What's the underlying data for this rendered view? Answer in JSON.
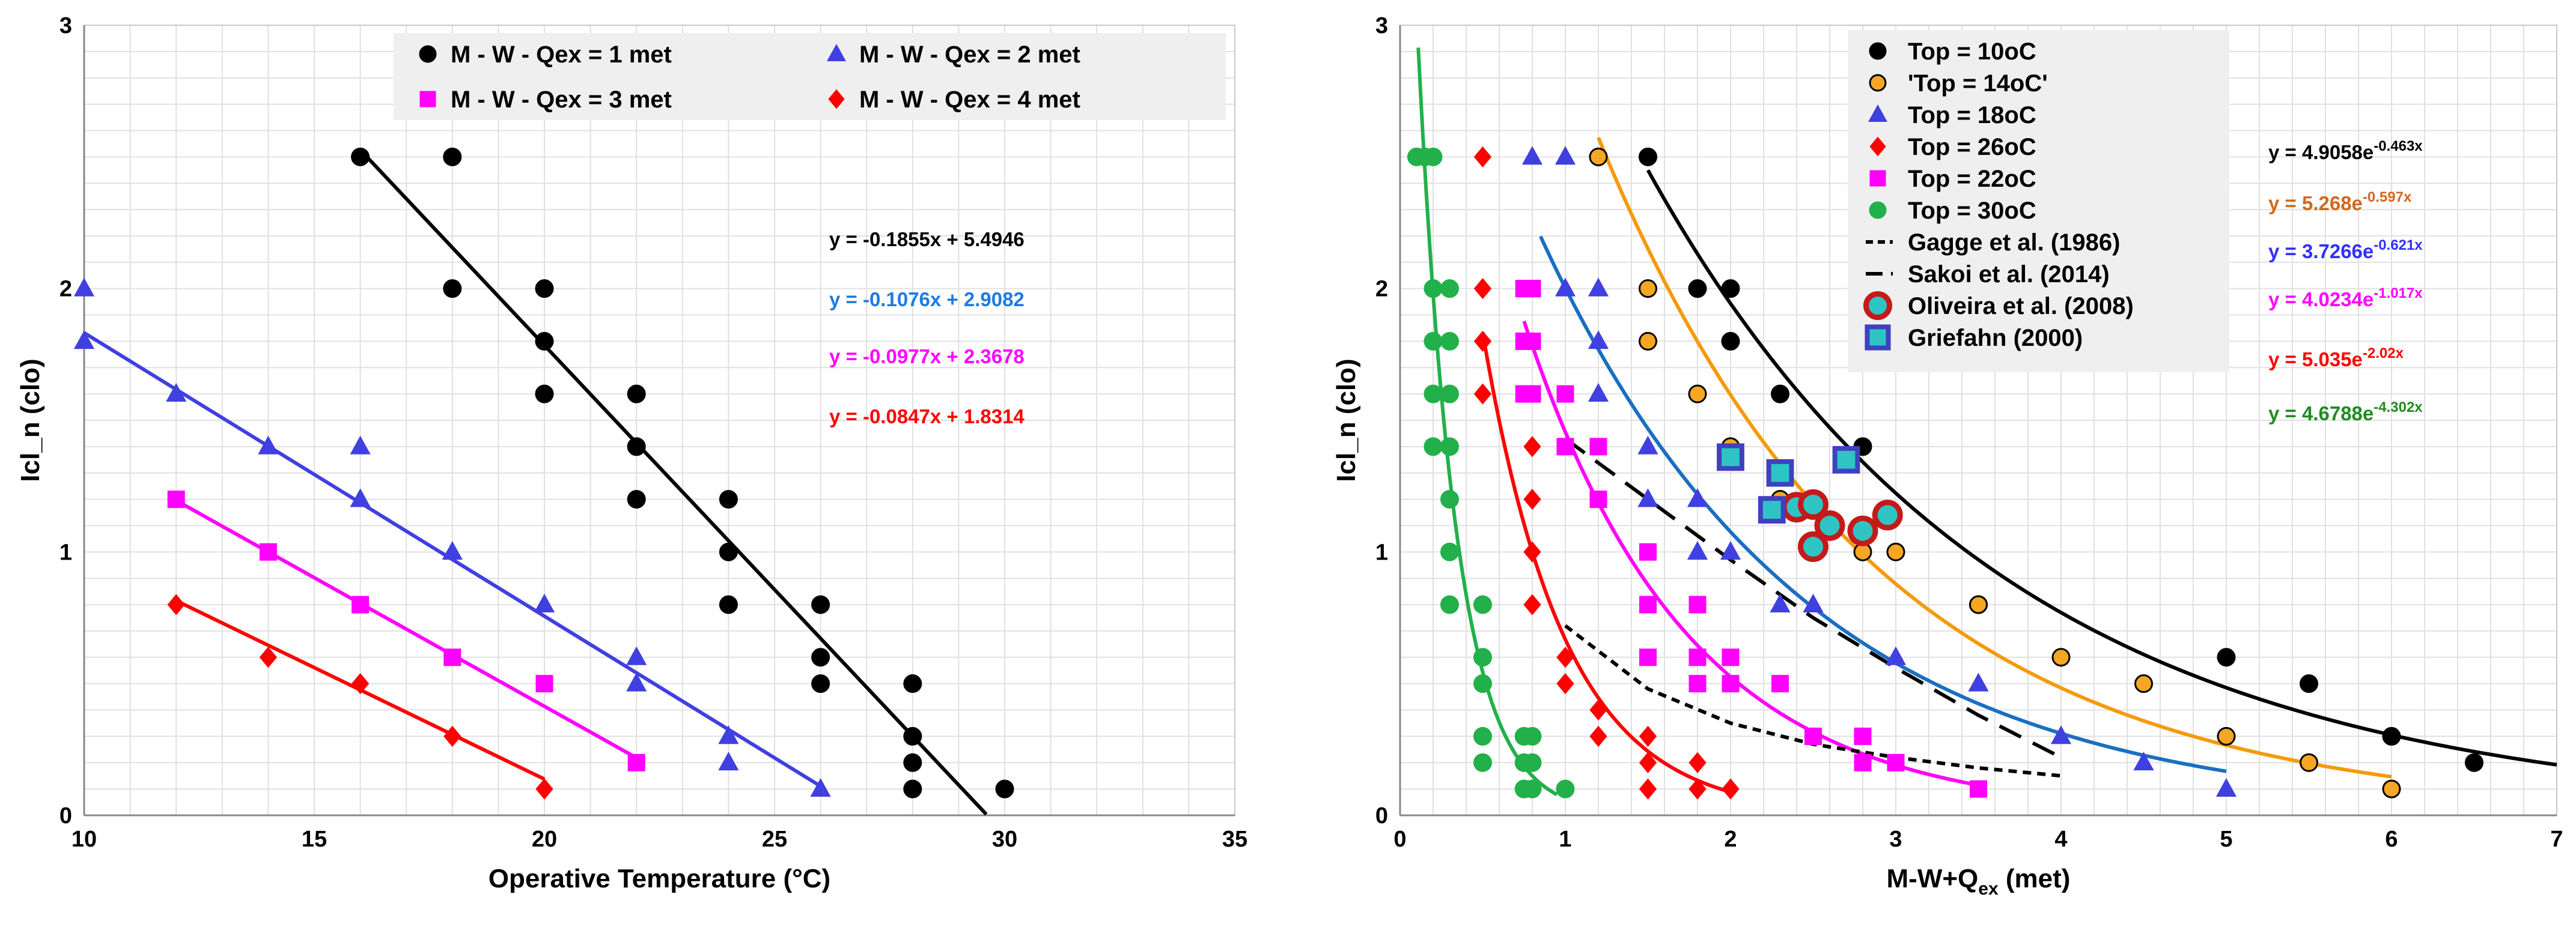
{
  "chart_data": [
    {
      "type": "scatter",
      "xlabel": "Operative Temperature (°C)",
      "ylabel": "Icl_n (clo)",
      "xlim": [
        10,
        35
      ],
      "ylim": [
        0,
        3
      ],
      "xticks": [
        10,
        15,
        20,
        25,
        30,
        35
      ],
      "yticks": [
        0,
        1,
        2,
        3
      ],
      "grid": true,
      "legend_position": "top",
      "series": [
        {
          "name": "M - W - Qex = 1 met",
          "marker": "circle",
          "color": "#000000",
          "points": [
            [
              16,
              2.5
            ],
            [
              18,
              2.5
            ],
            [
              18,
              2.0
            ],
            [
              20,
              2.0
            ],
            [
              20,
              1.8
            ],
            [
              20,
              1.6
            ],
            [
              22,
              1.6
            ],
            [
              22,
              1.4
            ],
            [
              22,
              1.2
            ],
            [
              24,
              1.2
            ],
            [
              24,
              1.0
            ],
            [
              24,
              0.8
            ],
            [
              26,
              0.8
            ],
            [
              26,
              0.6
            ],
            [
              26,
              0.5
            ],
            [
              28,
              0.5
            ],
            [
              28,
              0.3
            ],
            [
              28,
              0.2
            ],
            [
              28,
              0.1
            ],
            [
              30,
              0.1
            ]
          ],
          "fit": {
            "slope": -0.1855,
            "intercept": 5.4946,
            "x_range": [
              16,
              29.6
            ],
            "equation": "y = -0.1855x + 5.4946"
          }
        },
        {
          "name": "M - W - Qex = 2 met",
          "marker": "triangle",
          "color": "#4040e0",
          "points": [
            [
              10,
              2.0
            ],
            [
              10,
              1.8
            ],
            [
              12,
              1.6
            ],
            [
              14,
              1.4
            ],
            [
              16,
              1.4
            ],
            [
              16,
              1.2
            ],
            [
              18,
              1.0
            ],
            [
              20,
              0.8
            ],
            [
              22,
              0.6
            ],
            [
              22,
              0.5
            ],
            [
              24,
              0.3
            ],
            [
              24,
              0.2
            ],
            [
              26,
              0.1
            ]
          ],
          "fit": {
            "slope": -0.1076,
            "intercept": 2.9082,
            "x_range": [
              10,
              26
            ],
            "equation": "y = -0.1076x + 2.9082"
          }
        },
        {
          "name": "M - W - Qex = 3 met",
          "marker": "square",
          "color": "#ff00ff",
          "points": [
            [
              12,
              1.2
            ],
            [
              14,
              1.0
            ],
            [
              16,
              0.8
            ],
            [
              18,
              0.6
            ],
            [
              20,
              0.5
            ],
            [
              22,
              0.2
            ]
          ],
          "fit": {
            "slope": -0.0977,
            "intercept": 2.3678,
            "x_range": [
              12,
              22
            ],
            "equation": "y = -0.0977x + 2.3678"
          }
        },
        {
          "name": "M - W - Qex = 4 met",
          "marker": "diamond",
          "color": "#ff0000",
          "points": [
            [
              12,
              0.8
            ],
            [
              14,
              0.6
            ],
            [
              16,
              0.5
            ],
            [
              18,
              0.3
            ],
            [
              20,
              0.1
            ]
          ],
          "fit": {
            "slope": -0.0847,
            "intercept": 1.8314,
            "x_range": [
              12,
              20
            ],
            "equation": "y = -0.0847x + 1.8314"
          }
        }
      ],
      "equation_colors": [
        "#000000",
        "#1e7be0",
        "#ff00ff",
        "#ff0000"
      ]
    },
    {
      "type": "scatter",
      "xlabel_main": "M-W+Q",
      "xlabel_sub": "ex",
      "xlabel_tail": " (met)",
      "ylabel": "Icl_n (clo)",
      "xlim": [
        0,
        7
      ],
      "ylim": [
        0,
        3
      ],
      "xticks": [
        0,
        1,
        2,
        3,
        4,
        5,
        6,
        7
      ],
      "yticks": [
        0,
        1,
        2,
        3
      ],
      "grid": true,
      "legend_position": "top-center",
      "series": [
        {
          "name": "Top = 10oC",
          "marker": "circle",
          "color": "#000000",
          "edge": "#000000",
          "line": "#000000",
          "points": [
            [
              1.5,
              2.5
            ],
            [
              1.8,
              2.0
            ],
            [
              2.0,
              2.0
            ],
            [
              2.0,
              1.8
            ],
            [
              2.3,
              1.6
            ],
            [
              2.8,
              1.4
            ],
            [
              3.5,
              0.8
            ],
            [
              5.0,
              0.6
            ],
            [
              5.5,
              0.5
            ],
            [
              6.0,
              0.3
            ],
            [
              6.5,
              0.2
            ]
          ],
          "fit": {
            "a": 4.9058,
            "b": -0.463,
            "x_range": [
              1.5,
              7
            ],
            "coef": "4.9058",
            "exp": "-0.463x"
          }
        },
        {
          "name": "'Top = 14oC'",
          "marker": "circle",
          "color": "#f5a623",
          "edge": "#000000",
          "line": "#f59a0a",
          "points": [
            [
              1.2,
              2.5
            ],
            [
              1.5,
              2.0
            ],
            [
              1.5,
              1.8
            ],
            [
              1.8,
              1.6
            ],
            [
              2.0,
              1.4
            ],
            [
              2.3,
              1.2
            ],
            [
              2.8,
              1.0
            ],
            [
              3.0,
              1.0
            ],
            [
              3.5,
              0.8
            ],
            [
              4.0,
              0.6
            ],
            [
              4.5,
              0.5
            ],
            [
              5.0,
              0.3
            ],
            [
              5.5,
              0.2
            ],
            [
              6.0,
              0.1
            ]
          ],
          "fit": {
            "a": 5.268,
            "b": -0.597,
            "x_range": [
              1.2,
              6
            ],
            "coef": "5.268",
            "exp": "-0.597x"
          }
        },
        {
          "name": "Top = 18oC",
          "marker": "triangle",
          "color": "#4040e0",
          "edge": "#4040e0",
          "line": "#1a6fc0",
          "points": [
            [
              0.8,
              2.5
            ],
            [
              1.0,
              2.5
            ],
            [
              1.0,
              2.0
            ],
            [
              1.2,
              2.0
            ],
            [
              1.2,
              1.8
            ],
            [
              1.2,
              1.6
            ],
            [
              1.5,
              1.4
            ],
            [
              1.5,
              1.2
            ],
            [
              1.8,
              1.2
            ],
            [
              1.8,
              1.0
            ],
            [
              2.0,
              1.0
            ],
            [
              2.3,
              0.8
            ],
            [
              2.5,
              0.8
            ],
            [
              3.0,
              0.6
            ],
            [
              3.5,
              0.5
            ],
            [
              4.0,
              0.3
            ],
            [
              4.5,
              0.2
            ],
            [
              5.0,
              0.1
            ]
          ],
          "fit": {
            "a": 3.7266,
            "b": -0.621,
            "x_range": [
              0.85,
              5
            ],
            "coef": "3.7266",
            "exp": "-0.621x"
          }
        },
        {
          "name": "Top = 26oC",
          "marker": "diamond",
          "color": "#ff0000",
          "edge": "#ff0000",
          "line": "#ff0000",
          "points": [
            [
              0.5,
              2.5
            ],
            [
              0.5,
              2.0
            ],
            [
              0.5,
              1.8
            ],
            [
              0.5,
              1.6
            ],
            [
              0.8,
              1.4
            ],
            [
              0.8,
              1.2
            ],
            [
              0.8,
              1.0
            ],
            [
              0.8,
              0.8
            ],
            [
              1.0,
              0.6
            ],
            [
              1.0,
              0.5
            ],
            [
              1.2,
              0.4
            ],
            [
              1.2,
              0.3
            ],
            [
              1.5,
              0.3
            ],
            [
              1.5,
              0.2
            ],
            [
              1.5,
              0.1
            ],
            [
              1.8,
              0.2
            ],
            [
              1.8,
              0.1
            ],
            [
              2.0,
              0.1
            ]
          ],
          "fit": {
            "a": 5.035,
            "b": -2.02,
            "x_range": [
              0.5,
              2
            ],
            "coef": "5.035",
            "exp": "-2.02x"
          }
        },
        {
          "name": "Top = 22oC",
          "marker": "square",
          "color": "#ff00ff",
          "edge": "#ff00ff",
          "line": "#ff00ff",
          "points": [
            [
              0.75,
              2.0
            ],
            [
              0.8,
              2.0
            ],
            [
              0.75,
              1.8
            ],
            [
              0.8,
              1.8
            ],
            [
              0.75,
              1.6
            ],
            [
              0.8,
              1.6
            ],
            [
              1.0,
              1.6
            ],
            [
              1.0,
              1.4
            ],
            [
              1.2,
              1.4
            ],
            [
              1.2,
              1.2
            ],
            [
              1.5,
              1.0
            ],
            [
              1.5,
              0.8
            ],
            [
              1.8,
              0.8
            ],
            [
              1.5,
              0.6
            ],
            [
              1.8,
              0.6
            ],
            [
              2.0,
              0.6
            ],
            [
              1.8,
              0.5
            ],
            [
              2.0,
              0.5
            ],
            [
              2.3,
              0.5
            ],
            [
              2.5,
              0.3
            ],
            [
              2.8,
              0.3
            ],
            [
              2.8,
              0.2
            ],
            [
              3.0,
              0.2
            ],
            [
              3.5,
              0.1
            ]
          ],
          "fit": {
            "a": 4.0234,
            "b": -1.017,
            "x_range": [
              0.75,
              3.5
            ],
            "coef": "4.0234",
            "exp": "-1.017x"
          }
        },
        {
          "name": "Top = 30oC",
          "marker": "circle",
          "color": "#22b04a",
          "edge": "#22b04a",
          "line": "#22b04a",
          "points": [
            [
              0.1,
              2.5
            ],
            [
              0.15,
              2.5
            ],
            [
              0.2,
              2.5
            ],
            [
              0.2,
              2.0
            ],
            [
              0.3,
              2.0
            ],
            [
              0.2,
              1.8
            ],
            [
              0.3,
              1.8
            ],
            [
              0.2,
              1.6
            ],
            [
              0.3,
              1.6
            ],
            [
              0.2,
              1.4
            ],
            [
              0.3,
              1.4
            ],
            [
              0.3,
              1.2
            ],
            [
              0.3,
              1.0
            ],
            [
              0.3,
              0.8
            ],
            [
              0.5,
              0.8
            ],
            [
              0.5,
              0.6
            ],
            [
              0.5,
              0.5
            ],
            [
              0.5,
              0.3
            ],
            [
              0.5,
              0.2
            ],
            [
              0.8,
              0.3
            ],
            [
              0.8,
              0.2
            ],
            [
              0.8,
              0.1
            ],
            [
              0.75,
              0.3
            ],
            [
              0.75,
              0.2
            ],
            [
              0.75,
              0.1
            ],
            [
              1.0,
              0.1
            ]
          ],
          "fit": {
            "a": 4.6788,
            "b": -4.302,
            "x_range": [
              0.11,
              0.95
            ],
            "coef": "4.6788",
            "exp": "-4.302x"
          }
        },
        {
          "name": "Gagge et al. (1986)",
          "style": "dashed-short",
          "color": "#000000",
          "curve": [
            [
              1.0,
              0.72
            ],
            [
              1.5,
              0.48
            ],
            [
              2.0,
              0.35
            ],
            [
              2.5,
              0.27
            ],
            [
              3.0,
              0.22
            ],
            [
              3.5,
              0.18
            ],
            [
              4.0,
              0.15
            ]
          ]
        },
        {
          "name": "Sakoi et al. (2014)",
          "style": "dashed-long",
          "color": "#000000",
          "curve": [
            [
              1.0,
              1.43
            ],
            [
              1.5,
              1.2
            ],
            [
              2.0,
              0.97
            ],
            [
              2.5,
              0.75
            ],
            [
              3.0,
              0.56
            ],
            [
              3.5,
              0.38
            ],
            [
              4.0,
              0.22
            ]
          ]
        },
        {
          "name": "Oliveira et al. (2008)",
          "marker": "ring",
          "color": "#2ec4c4",
          "edge": "#c41a1a",
          "points": [
            [
              2.4,
              1.17
            ],
            [
              2.5,
              1.02
            ],
            [
              2.5,
              1.18
            ],
            [
              2.6,
              1.1
            ],
            [
              2.8,
              1.08
            ],
            [
              2.95,
              1.14
            ]
          ]
        },
        {
          "name": "Griefahn (2000)",
          "marker": "square-outline",
          "color": "#2ec4c4",
          "edge": "#4040c0",
          "points": [
            [
              2.0,
              1.36
            ],
            [
              2.25,
              1.16
            ],
            [
              2.3,
              1.3
            ],
            [
              2.7,
              1.35
            ]
          ]
        }
      ],
      "equation_colors": [
        "#000000",
        "#d2691e",
        "#3030ff",
        "#ff00ff",
        "#ff0000",
        "#228b22"
      ],
      "equation_order": [
        0,
        1,
        2,
        4,
        3,
        5
      ]
    }
  ]
}
